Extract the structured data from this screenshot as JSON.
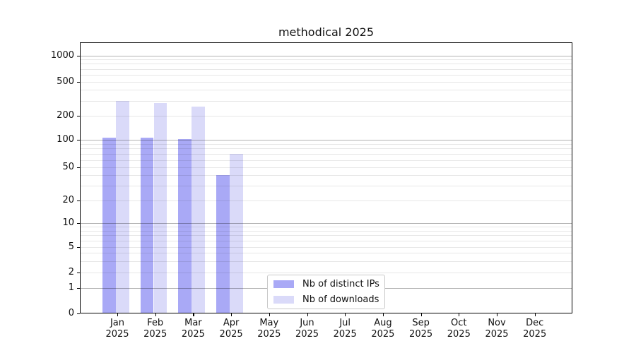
{
  "chart_data": {
    "type": "bar",
    "title": "methodical 2025",
    "categories": [
      "Jan",
      "Feb",
      "Mar",
      "Apr",
      "May",
      "Jun",
      "Jul",
      "Aug",
      "Sep",
      "Oct",
      "Nov",
      "Dec"
    ],
    "category_year": "2025",
    "series": [
      {
        "name": "Nb of distinct IPs",
        "color": "#a9a9f6",
        "values": [
          106,
          105,
          102,
          40,
          0,
          0,
          0,
          0,
          0,
          0,
          0,
          0
        ]
      },
      {
        "name": "Nb of downloads",
        "color": "#dadaf9",
        "values": [
          300,
          280,
          255,
          70,
          0,
          0,
          0,
          0,
          0,
          0,
          0,
          0
        ]
      }
    ],
    "yscale": "symlog",
    "yticks": [
      0,
      1,
      2,
      5,
      10,
      20,
      50,
      100,
      200,
      500,
      1000
    ],
    "ylim": [
      0,
      1500
    ],
    "xlabel": "",
    "ylabel": "",
    "grid": true,
    "legend_position": "lower center",
    "colors": {
      "bar_distinct_ips": "#a9a9f6",
      "bar_downloads": "#dadaf9",
      "major_gridline": "#b3b3b3",
      "minor_gridline": "#e8e8e8",
      "axis": "#000000",
      "text": "#111111",
      "legend_border": "#c9c9c9"
    }
  }
}
